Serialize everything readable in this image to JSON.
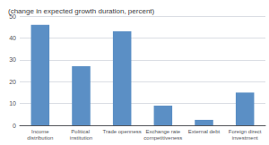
{
  "chart_data": {
    "type": "bar",
    "title": "(change in expected growth duration, percent)",
    "categories": [
      "Income\ndistribution",
      "Political institution",
      "Trade openness",
      "Exchange rate\ncompetitiveness",
      "External debt",
      "Foreign direct\ninvestment"
    ],
    "values": [
      46,
      27,
      43,
      9,
      2.5,
      15
    ],
    "color": "#5b8fc5",
    "ylim": [
      0,
      50
    ],
    "yticks": [
      0,
      10,
      20,
      30,
      40,
      50
    ],
    "grid": true
  }
}
